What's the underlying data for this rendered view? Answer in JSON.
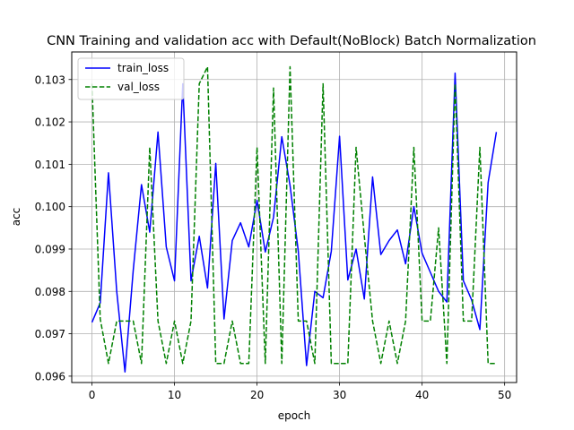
{
  "chart_data": {
    "type": "line",
    "title": "CNN Training and validation acc with Default(NoBlock) Batch Normalization",
    "xlabel": "epoch",
    "ylabel": "acc",
    "xlim": [
      -2.45,
      51.45
    ],
    "ylim": [
      0.09585,
      0.10365
    ],
    "xticks": [
      0,
      10,
      20,
      30,
      40,
      50
    ],
    "xtick_labels": [
      "0",
      "10",
      "20",
      "30",
      "40",
      "50"
    ],
    "yticks": [
      0.096,
      0.097,
      0.098,
      0.099,
      0.1,
      0.101,
      0.102,
      0.103
    ],
    "ytick_labels": [
      "0.096",
      "0.097",
      "0.098",
      "0.099",
      "0.100",
      "0.101",
      "0.102",
      "0.103"
    ],
    "grid": true,
    "legend_position": "top-left",
    "x": [
      0,
      1,
      2,
      3,
      4,
      5,
      6,
      7,
      8,
      9,
      10,
      11,
      12,
      13,
      14,
      15,
      16,
      17,
      18,
      19,
      20,
      21,
      22,
      23,
      24,
      25,
      26,
      27,
      28,
      29,
      30,
      31,
      32,
      33,
      34,
      35,
      36,
      37,
      38,
      39,
      40,
      41,
      42,
      43,
      44,
      45,
      46,
      47,
      48,
      49
    ],
    "series": [
      {
        "name": "train_loss",
        "color": "#0000ff",
        "dash": "solid",
        "values": [
          0.09727,
          0.09773,
          0.1008,
          0.098,
          0.0961,
          0.0985,
          0.10052,
          0.0994,
          0.10176,
          0.09905,
          0.09825,
          0.1029,
          0.09825,
          0.0993,
          0.09808,
          0.10102,
          0.09735,
          0.0992,
          0.09962,
          0.09905,
          0.10015,
          0.09893,
          0.09975,
          0.10165,
          0.1005,
          0.09895,
          0.09625,
          0.098,
          0.09785,
          0.09895,
          0.10166,
          0.09827,
          0.099,
          0.09782,
          0.1007,
          0.09887,
          0.0992,
          0.09945,
          0.09865,
          0.1,
          0.0989,
          0.09845,
          0.098,
          0.09775,
          0.10315,
          0.09825,
          0.0978,
          0.0971,
          0.10057,
          0.10176
        ]
      },
      {
        "name": "val_loss",
        "color": "#008000",
        "dash": "dashed",
        "values": [
          0.1029,
          0.09735,
          0.0963,
          0.0973,
          0.0973,
          0.0973,
          0.0963,
          0.1014,
          0.0973,
          0.0963,
          0.0973,
          0.0963,
          0.0973,
          0.1029,
          0.1033,
          0.0963,
          0.0963,
          0.0973,
          0.0963,
          0.0963,
          0.1014,
          0.0963,
          0.1028,
          0.0963,
          0.1033,
          0.0973,
          0.0973,
          0.0963,
          0.1029,
          0.0963,
          0.0963,
          0.0963,
          0.1014,
          0.0993,
          0.0973,
          0.0963,
          0.0973,
          0.0963,
          0.0973,
          0.1014,
          0.0973,
          0.0973,
          0.0995,
          0.0963,
          0.1029,
          0.0973,
          0.0973,
          0.1014,
          0.0963,
          0.0963
        ]
      }
    ]
  }
}
